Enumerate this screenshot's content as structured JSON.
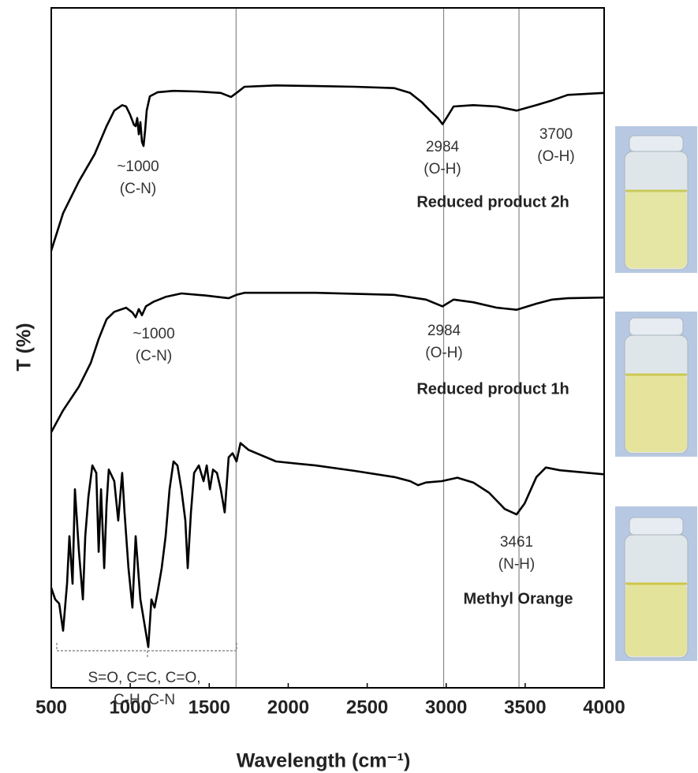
{
  "chart_data": {
    "type": "line",
    "xlabel": "Wavelength (cm⁻¹)",
    "ylabel": "T (%)",
    "xlim": [
      500,
      4000
    ],
    "ylim": [
      0,
      100
    ],
    "xticks": [
      500,
      1000,
      1500,
      2000,
      2500,
      3000,
      3500,
      4000
    ],
    "reference_lines": [
      1670,
      2984,
      3461
    ],
    "reference_color": "#888888",
    "series": [
      {
        "name": "Reduced product 2h",
        "color": "#000000",
        "x": [
          500,
          575,
          675,
          775,
          850,
          899,
          949,
          974,
          999,
          1024,
          1034,
          1044,
          1054,
          1064,
          1074,
          1084,
          1094,
          1104,
          1124,
          1174,
          1274,
          1424,
          1573,
          1638,
          1673,
          1723,
          1923,
          2173,
          2422,
          2672,
          2772,
          2847,
          2897,
          2947,
          2977,
          3002,
          3047,
          3171,
          3321,
          3446,
          3571,
          3671,
          3720,
          3770,
          4000
        ],
        "values": [
          64.3,
          69.8,
          74.5,
          78.5,
          82.6,
          84.9,
          85.7,
          85.5,
          84.3,
          82.8,
          82.6,
          83.8,
          81.4,
          83.2,
          80.3,
          79.7,
          82.0,
          84.9,
          87.0,
          87.6,
          87.8,
          87.7,
          87.5,
          86.9,
          87.5,
          88.4,
          88.6,
          88.5,
          88.4,
          88.2,
          87.5,
          86.1,
          84.9,
          83.8,
          82.9,
          83.8,
          85.5,
          85.7,
          85.5,
          84.9,
          85.7,
          86.4,
          86.8,
          87.2,
          87.5
        ]
      },
      {
        "name": "Reduced product 1h",
        "color": "#000000",
        "x": [
          500,
          575,
          675,
          750,
          800,
          850,
          899,
          974,
          1014,
          1034,
          1054,
          1074,
          1099,
          1149,
          1224,
          1324,
          1474,
          1623,
          1673,
          1723,
          2173,
          2672,
          2872,
          2977,
          3047,
          3171,
          3321,
          3446,
          3571,
          3671,
          3770,
          4000
        ],
        "values": [
          37.6,
          40.8,
          44.3,
          47.8,
          51.3,
          54.2,
          55.3,
          55.9,
          55.2,
          54.5,
          55.7,
          54.8,
          56.1,
          56.8,
          57.5,
          58.0,
          57.7,
          57.3,
          57.8,
          58.1,
          58.1,
          57.8,
          57.1,
          56.1,
          57.1,
          56.7,
          55.9,
          55.6,
          56.5,
          57.1,
          57.3,
          57.4
        ]
      },
      {
        "name": "Methyl Orange",
        "color": "#000000",
        "x": [
          500,
          525,
          550,
          575,
          600,
          615,
          635,
          650,
          675,
          700,
          715,
          735,
          760,
          785,
          800,
          815,
          835,
          850,
          864,
          899,
          924,
          949,
          964,
          989,
          1014,
          1034,
          1064,
          1089,
          1114,
          1134,
          1154,
          1174,
          1199,
          1224,
          1249,
          1274,
          1299,
          1324,
          1349,
          1364,
          1384,
          1404,
          1434,
          1464,
          1484,
          1504,
          1524,
          1549,
          1573,
          1598,
          1623,
          1648,
          1673,
          1698,
          1748,
          1923,
          2173,
          2422,
          2672,
          2772,
          2822,
          2872,
          2972,
          3071,
          3171,
          3271,
          3371,
          3446,
          3496,
          3571,
          3631,
          3720,
          4000
        ],
        "values": [
          14.7,
          13.0,
          12.4,
          8.4,
          15.3,
          22.3,
          15.3,
          29.2,
          20.0,
          13.0,
          22.3,
          28.1,
          32.7,
          31.6,
          20.0,
          29.2,
          17.6,
          26.9,
          32.1,
          30.4,
          24.6,
          31.6,
          25.8,
          17.6,
          11.8,
          22.3,
          13.0,
          9.5,
          6.0,
          13.0,
          11.8,
          14.2,
          17.6,
          22.3,
          29.2,
          33.3,
          32.7,
          29.2,
          24.6,
          17.6,
          25.8,
          31.6,
          32.7,
          30.4,
          32.7,
          29.2,
          32.1,
          31.6,
          29.2,
          25.8,
          33.9,
          34.5,
          33.3,
          36.0,
          35.0,
          33.3,
          32.7,
          31.9,
          31.0,
          30.4,
          29.8,
          30.2,
          30.4,
          30.9,
          30.2,
          28.7,
          26.3,
          25.5,
          27.1,
          31.0,
          32.4,
          32.0,
          31.4
        ]
      }
    ],
    "annotations": [
      [
        "~1000",
        "(C-N)"
      ],
      [
        "2984",
        "(O-H)"
      ],
      [
        "3700",
        "(O-H)"
      ],
      [
        "~1000",
        "(C-N)"
      ],
      [
        "2984",
        "(O-H)"
      ],
      [
        "3461",
        "(N-H)"
      ],
      [
        "S=O, C=C, C=O,",
        "C-H, C-N"
      ]
    ]
  }
}
